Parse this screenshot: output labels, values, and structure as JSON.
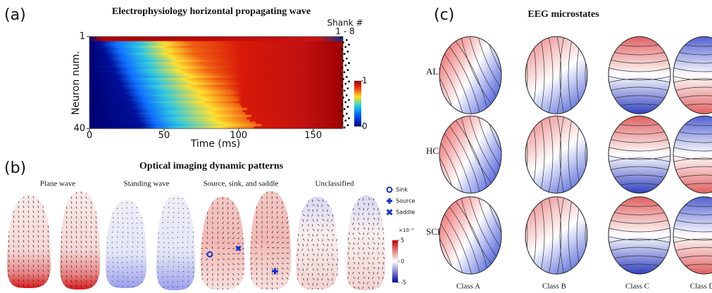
{
  "panel_a": {
    "label": "(a)",
    "title": "Electrophysiology horizontal propagating wave",
    "ylabel": "Neuron num.",
    "xlabel": "Time (ms)",
    "xlim": [
      0,
      170
    ],
    "xticks": [
      0,
      50,
      100,
      150
    ],
    "ylim": [
      1,
      40
    ],
    "yticks": [
      1,
      40
    ],
    "colorbar_lim": [
      0,
      1
    ],
    "colorbar_ticks": [
      0,
      1
    ],
    "shank_label": "Shank #",
    "shank_range": "1 - 8"
  },
  "panel_b": {
    "label": "(b)",
    "title": "Optical imaging dynamic patterns",
    "subtitles": [
      "Plane wave",
      "Standing wave",
      "Source, sink, and saddle",
      "Unclassified"
    ],
    "legend": [
      "Sink",
      "Source",
      "Saddle"
    ],
    "colorbar_lim": [
      -5,
      5
    ],
    "colorbar_ticks": [
      5,
      0,
      -5
    ],
    "colorbar_exponent": "×10⁻³"
  },
  "panel_c": {
    "label": "(c)",
    "title": "EEG microstates",
    "rows": [
      "ALL",
      "HC",
      "SCH"
    ],
    "columns": [
      "Class A",
      "Class B",
      "Class C",
      "Class D"
    ]
  }
}
